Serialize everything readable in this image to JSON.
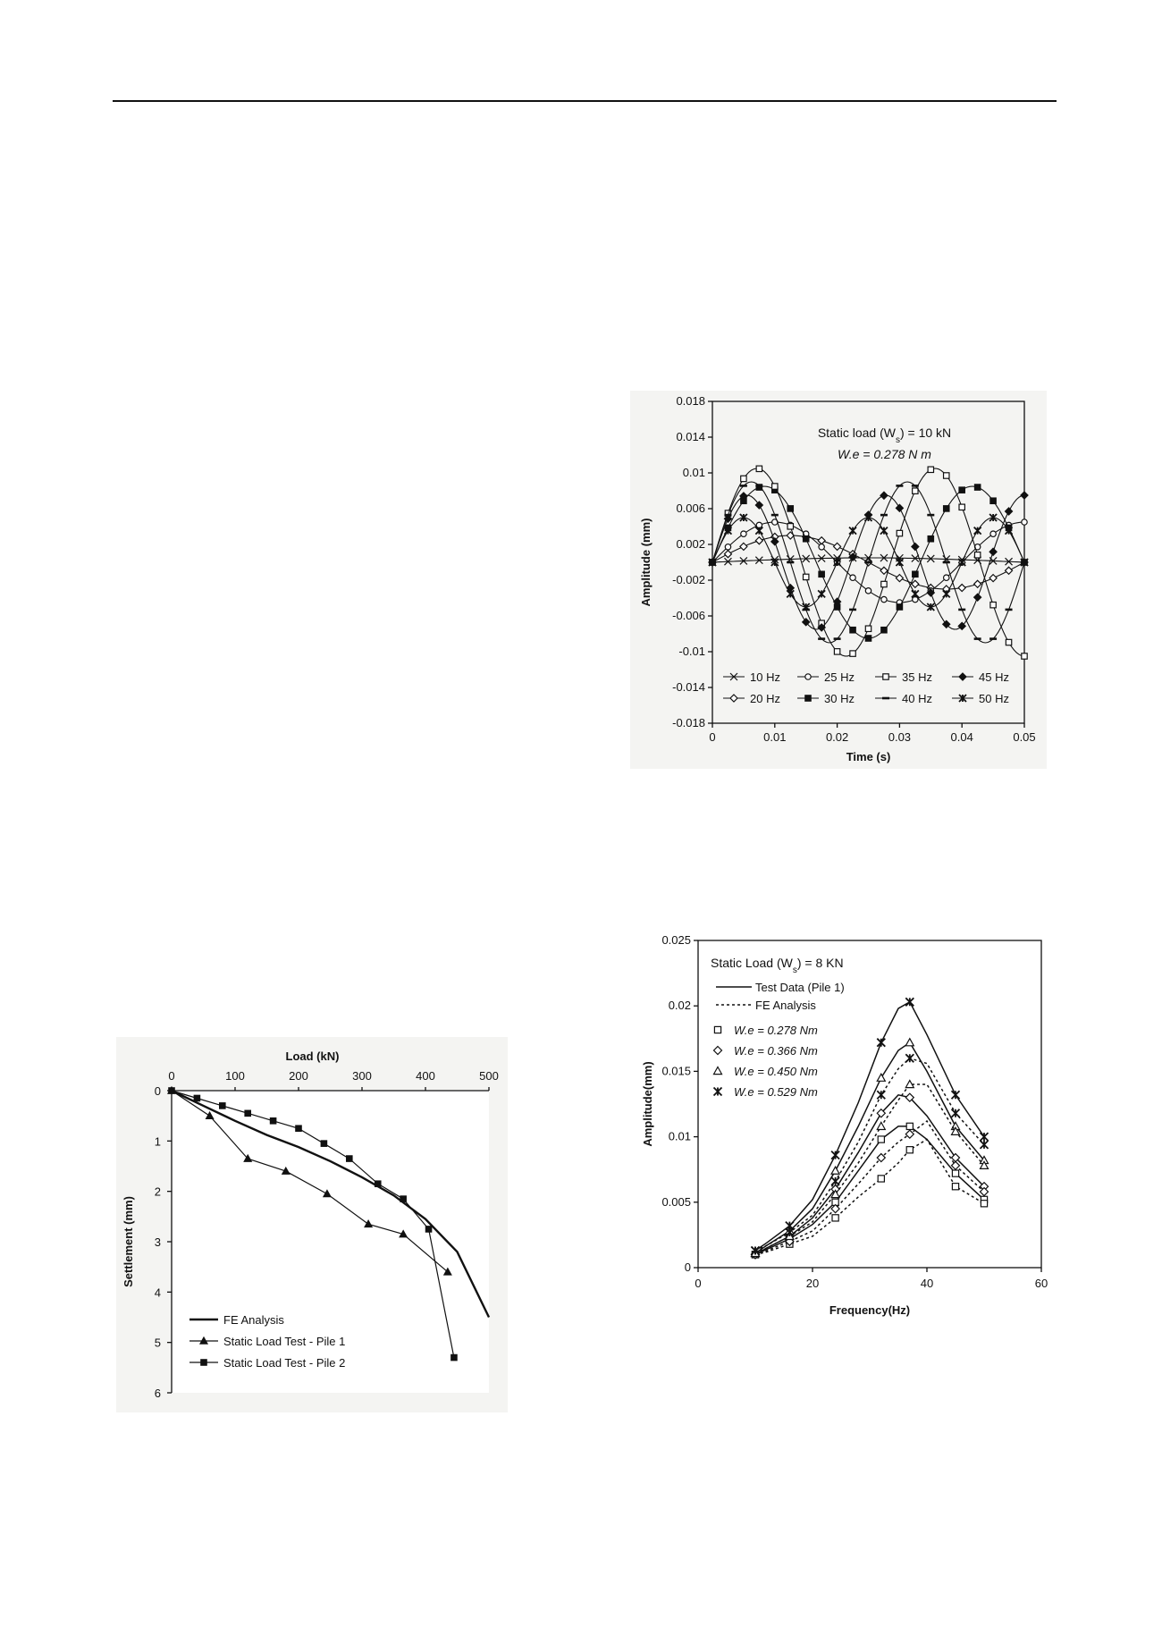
{
  "charts": [
    {
      "id": "amp-time",
      "chart_data": {
        "type": "line",
        "x_label": "Time (s)",
        "y_label": "Amplitude (mm)",
        "xlim": [
          0,
          0.05
        ],
        "ylim": [
          -0.018,
          0.018
        ],
        "x_ticks": [
          "0",
          "0.01",
          "0.02",
          "0.03",
          "0.04",
          "0.05"
        ],
        "y_ticks": [
          "0.018",
          "0.014",
          "0.01",
          "0.006",
          "0.002",
          "-0.002",
          "-0.006",
          "-0.01",
          "-0.014",
          "-0.018"
        ],
        "annotations": [
          {
            "text": "Static load (W",
            "sub": "s",
            "tail": ") = 10 kN"
          },
          {
            "text": "W.e = 0.278 N m"
          }
        ],
        "series": [
          {
            "name": "10 Hz",
            "marker": "x",
            "amplitude": 0.0005,
            "freq_hz": 10,
            "decay": 0
          },
          {
            "name": "20 Hz",
            "marker": "diamond-open",
            "amplitude": 0.003,
            "freq_hz": 20,
            "decay": 0
          },
          {
            "name": "25 Hz",
            "marker": "circle-open",
            "amplitude": 0.0045,
            "freq_hz": 25,
            "decay": 0
          },
          {
            "name": "30 Hz",
            "marker": "square-filled",
            "amplitude": 0.0085,
            "freq_hz": 30,
            "decay": 0
          },
          {
            "name": "35 Hz",
            "marker": "square-open",
            "amplitude": 0.0105,
            "freq_hz": 35,
            "decay": 0
          },
          {
            "name": "40 Hz",
            "marker": "dash",
            "amplitude": 0.009,
            "freq_hz": 40,
            "decay": 0
          },
          {
            "name": "45 Hz",
            "marker": "diamond-filled",
            "amplitude": 0.0075,
            "freq_hz": 45,
            "decay": 0
          },
          {
            "name": "50 Hz",
            "marker": "star",
            "amplitude": 0.005,
            "freq_hz": 50,
            "decay": 0
          }
        ],
        "legend": "bottom-inside",
        "grid": false
      }
    },
    {
      "id": "amp-freq",
      "chart_data": {
        "type": "line",
        "x_label": "Frequency(Hz)",
        "y_label": "Amplitude(mm)",
        "xlim": [
          0,
          60
        ],
        "ylim": [
          0,
          0.025
        ],
        "x_ticks": [
          "0",
          "20",
          "40",
          "60"
        ],
        "y_ticks": [
          "0",
          "0.005",
          "0.01",
          "0.015",
          "0.02",
          "0.025"
        ],
        "legend_title": {
          "text": "Static Load (W",
          "sub": "s",
          "tail": ") = 8 KN"
        },
        "legend_lines": [
          "Test Data (Pile 1)",
          "FE Analysis"
        ],
        "legend_markers": [
          {
            "label": "W.e = 0.278 Nm",
            "marker": "square-open"
          },
          {
            "label": "W.e = 0.366 Nm",
            "marker": "diamond-open"
          },
          {
            "label": "W.e = 0.450 Nm",
            "marker": "triangle-open"
          },
          {
            "label": "W.e = 0.529 Nm",
            "marker": "star"
          }
        ],
        "x": [
          10,
          12,
          16,
          20,
          24,
          28,
          32,
          35,
          37,
          40,
          45,
          50
        ],
        "series": [
          {
            "name": "W.e = 0.278 Nm",
            "kind": "test",
            "marker": "square-open",
            "values": [
              0.001,
              0.0014,
              0.0022,
              0.0033,
              0.005,
              0.0074,
              0.0098,
              0.0108,
              0.0108,
              0.0098,
              0.0072,
              0.0052
            ]
          },
          {
            "name": "W.e = 0.278 Nm",
            "kind": "fe",
            "marker": "square-open",
            "values": [
              0.001,
              0.0012,
              0.0018,
              0.0024,
              0.0038,
              0.0054,
              0.0068,
              0.008,
              0.009,
              0.0098,
              0.0062,
              0.0049
            ]
          },
          {
            "name": "W.e = 0.366 Nm",
            "kind": "test",
            "marker": "diamond-open",
            "values": [
              0.001,
              0.0015,
              0.0024,
              0.0038,
              0.006,
              0.0088,
              0.0118,
              0.0132,
              0.013,
              0.0116,
              0.0084,
              0.0062
            ]
          },
          {
            "name": "W.e = 0.366 Nm",
            "kind": "fe",
            "marker": "diamond-open",
            "values": [
              0.001,
              0.0013,
              0.002,
              0.0028,
              0.0045,
              0.0064,
              0.0084,
              0.0096,
              0.0102,
              0.0112,
              0.0078,
              0.0058
            ]
          },
          {
            "name": "W.e = 0.450 Nm",
            "kind": "test",
            "marker": "triangle-open",
            "values": [
              0.0011,
              0.0017,
              0.0028,
              0.0045,
              0.0074,
              0.0108,
              0.0145,
              0.0166,
              0.0172,
              0.015,
              0.0108,
              0.0082
            ]
          },
          {
            "name": "W.e = 0.450 Nm",
            "kind": "fe",
            "marker": "triangle-open",
            "values": [
              0.0011,
              0.0015,
              0.0024,
              0.0035,
              0.0056,
              0.008,
              0.0108,
              0.0128,
              0.014,
              0.014,
              0.0104,
              0.0078
            ]
          },
          {
            "name": "W.e = 0.529 Nm",
            "kind": "test",
            "marker": "star",
            "values": [
              0.0013,
              0.0019,
              0.0032,
              0.0052,
              0.0086,
              0.0126,
              0.0172,
              0.0198,
              0.0203,
              0.0178,
              0.0132,
              0.01
            ]
          },
          {
            "name": "W.e = 0.529 Nm",
            "kind": "fe",
            "marker": "star",
            "values": [
              0.0013,
              0.0017,
              0.0027,
              0.004,
              0.0066,
              0.0096,
              0.0132,
              0.0152,
              0.016,
              0.0156,
              0.0118,
              0.0094
            ]
          }
        ],
        "legend": "top-left",
        "grid": false
      }
    },
    {
      "id": "load-settlement",
      "chart_data": {
        "type": "line",
        "x_label": "Load (kN)",
        "y_label": "Settlement (mm)",
        "xlim": [
          0,
          500
        ],
        "ylim": [
          0,
          6
        ],
        "x_ticks": [
          "0",
          "100",
          "200",
          "300",
          "400",
          "500"
        ],
        "y_ticks": [
          "0",
          "1",
          "2",
          "3",
          "4",
          "5",
          "6"
        ],
        "x_axis_position": "top",
        "y_inverted": true,
        "series": [
          {
            "name": "FE Analysis",
            "marker": "none",
            "x": [
              0,
              50,
              100,
              150,
              200,
              250,
              300,
              350,
              400,
              450,
              500
            ],
            "y": [
              0,
              0.3,
              0.6,
              0.88,
              1.12,
              1.4,
              1.72,
              2.08,
              2.55,
              3.2,
              4.5
            ]
          },
          {
            "name": "Static Load Test - Pile 1",
            "marker": "triangle-filled",
            "x": [
              0,
              60,
              120,
              180,
              245,
              310,
              365,
              435
            ],
            "y": [
              0,
              0.5,
              1.35,
              1.6,
              2.05,
              2.65,
              2.85,
              3.6
            ]
          },
          {
            "name": "Static Load Test - Pile 2",
            "marker": "square-filled",
            "x": [
              0,
              40,
              80,
              120,
              160,
              200,
              240,
              280,
              325,
              365,
              405,
              445
            ],
            "y": [
              0,
              0.15,
              0.3,
              0.45,
              0.6,
              0.75,
              1.05,
              1.35,
              1.85,
              2.15,
              2.75,
              5.3
            ]
          }
        ],
        "legend": "bottom-left",
        "grid": false
      }
    }
  ]
}
